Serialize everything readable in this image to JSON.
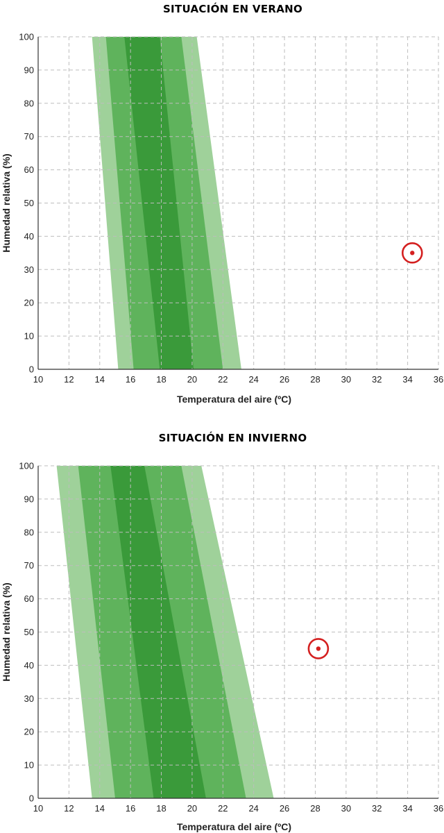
{
  "chart_data": [
    {
      "type": "area",
      "title": "SITUACIÓN EN VERANO",
      "xlabel": "Temperatura del aire (ºC)",
      "ylabel": "Humedad relativa (%)",
      "xlim": [
        10,
        36
      ],
      "ylim": [
        0,
        100
      ],
      "xticks": [
        "10",
        "12",
        "14",
        "16",
        "18",
        "20",
        "22",
        "24",
        "26",
        "28",
        "30",
        "32",
        "34",
        "36"
      ],
      "yticks": [
        "0",
        "10",
        "20",
        "30",
        "40",
        "50",
        "60",
        "70",
        "80",
        "90",
        "100"
      ],
      "grid": true,
      "zones": [
        {
          "color": "#9fd19a",
          "bottom": [
            15.2,
            23.2
          ],
          "top": [
            13.5,
            20.3
          ]
        },
        {
          "color": "#5fb35c",
          "bottom": [
            16.2,
            22.0
          ],
          "top": [
            14.4,
            19.3
          ]
        },
        {
          "color": "#3a9a3a",
          "bottom": [
            17.9,
            20.1
          ],
          "top": [
            15.6,
            17.9
          ]
        }
      ],
      "points": [
        {
          "x": 34.3,
          "y": 35,
          "color": "#d42020"
        }
      ]
    },
    {
      "type": "area",
      "title": "SITUACIÓN EN INVIERNO",
      "xlabel": "Temperatura del aire (ºC)",
      "ylabel": "Humedad relativa (%)",
      "xlim": [
        10,
        36
      ],
      "ylim": [
        0,
        100
      ],
      "xticks": [
        "10",
        "12",
        "14",
        "16",
        "18",
        "20",
        "22",
        "24",
        "26",
        "28",
        "30",
        "32",
        "34",
        "36"
      ],
      "yticks": [
        "0",
        "10",
        "20",
        "30",
        "40",
        "50",
        "60",
        "70",
        "80",
        "90",
        "100"
      ],
      "grid": true,
      "zones": [
        {
          "color": "#9fd19a",
          "bottom": [
            13.5,
            25.3
          ],
          "top": [
            11.2,
            20.6
          ]
        },
        {
          "color": "#5fb35c",
          "bottom": [
            15.0,
            23.5
          ],
          "top": [
            12.6,
            19.3
          ]
        },
        {
          "color": "#3a9a3a",
          "bottom": [
            17.5,
            20.9
          ],
          "top": [
            14.7,
            16.9
          ]
        }
      ],
      "points": [
        {
          "x": 28.2,
          "y": 45,
          "color": "#d42020"
        }
      ]
    }
  ]
}
